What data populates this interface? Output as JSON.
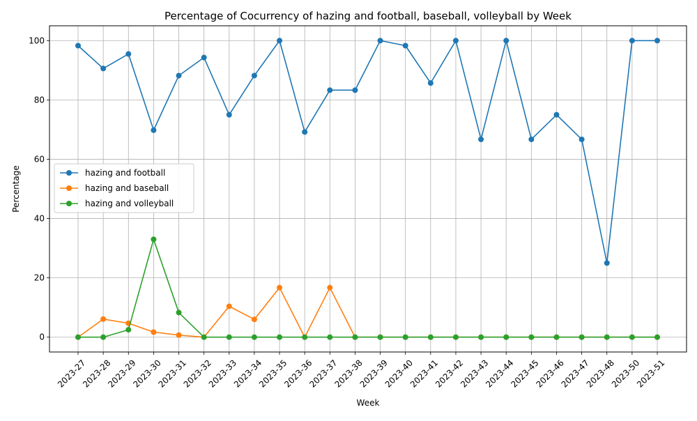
{
  "chart_data": {
    "type": "line",
    "title": "Percentage of Cocurrency of hazing and football, baseball, volleyball by Week",
    "xlabel": "Week",
    "ylabel": "Percentage",
    "ylim": [
      -5,
      105
    ],
    "yticks": [
      0,
      20,
      40,
      60,
      80,
      100
    ],
    "grid": true,
    "legend_position": "center-left",
    "categories": [
      "2023-27",
      "2023-28",
      "2023-29",
      "2023-30",
      "2023-31",
      "2023-32",
      "2023-33",
      "2023-34",
      "2023-35",
      "2023-36",
      "2023-37",
      "2023-38",
      "2023-39",
      "2023-40",
      "2023-41",
      "2023-42",
      "2023-43",
      "2023-44",
      "2023-45",
      "2023-46",
      "2023-47",
      "2023-48",
      "2023-50",
      "2023-51"
    ],
    "series": [
      {
        "name": "hazing and football",
        "color": "#1f77b4",
        "values": [
          98.3,
          90.6,
          95.5,
          69.8,
          88.2,
          94.3,
          75.0,
          88.2,
          100,
          69.2,
          83.3,
          83.3,
          100,
          98.3,
          85.7,
          100,
          66.7,
          100,
          66.7,
          75.0,
          66.7,
          25.0,
          100,
          100
        ]
      },
      {
        "name": "hazing and baseball",
        "color": "#ff7f0e",
        "values": [
          0,
          6.1,
          4.7,
          1.7,
          0.7,
          0,
          10.4,
          6.0,
          16.7,
          0,
          16.7,
          0,
          0,
          0,
          0,
          0,
          0,
          0,
          0,
          0,
          0,
          0,
          0,
          0
        ]
      },
      {
        "name": "hazing and volleyball",
        "color": "#2ca02c",
        "values": [
          0,
          0,
          2.5,
          33.0,
          8.3,
          0,
          0,
          0,
          0,
          0,
          0,
          0,
          0,
          0,
          0,
          0,
          0,
          0,
          0,
          0,
          0,
          0,
          0,
          0
        ]
      }
    ]
  }
}
